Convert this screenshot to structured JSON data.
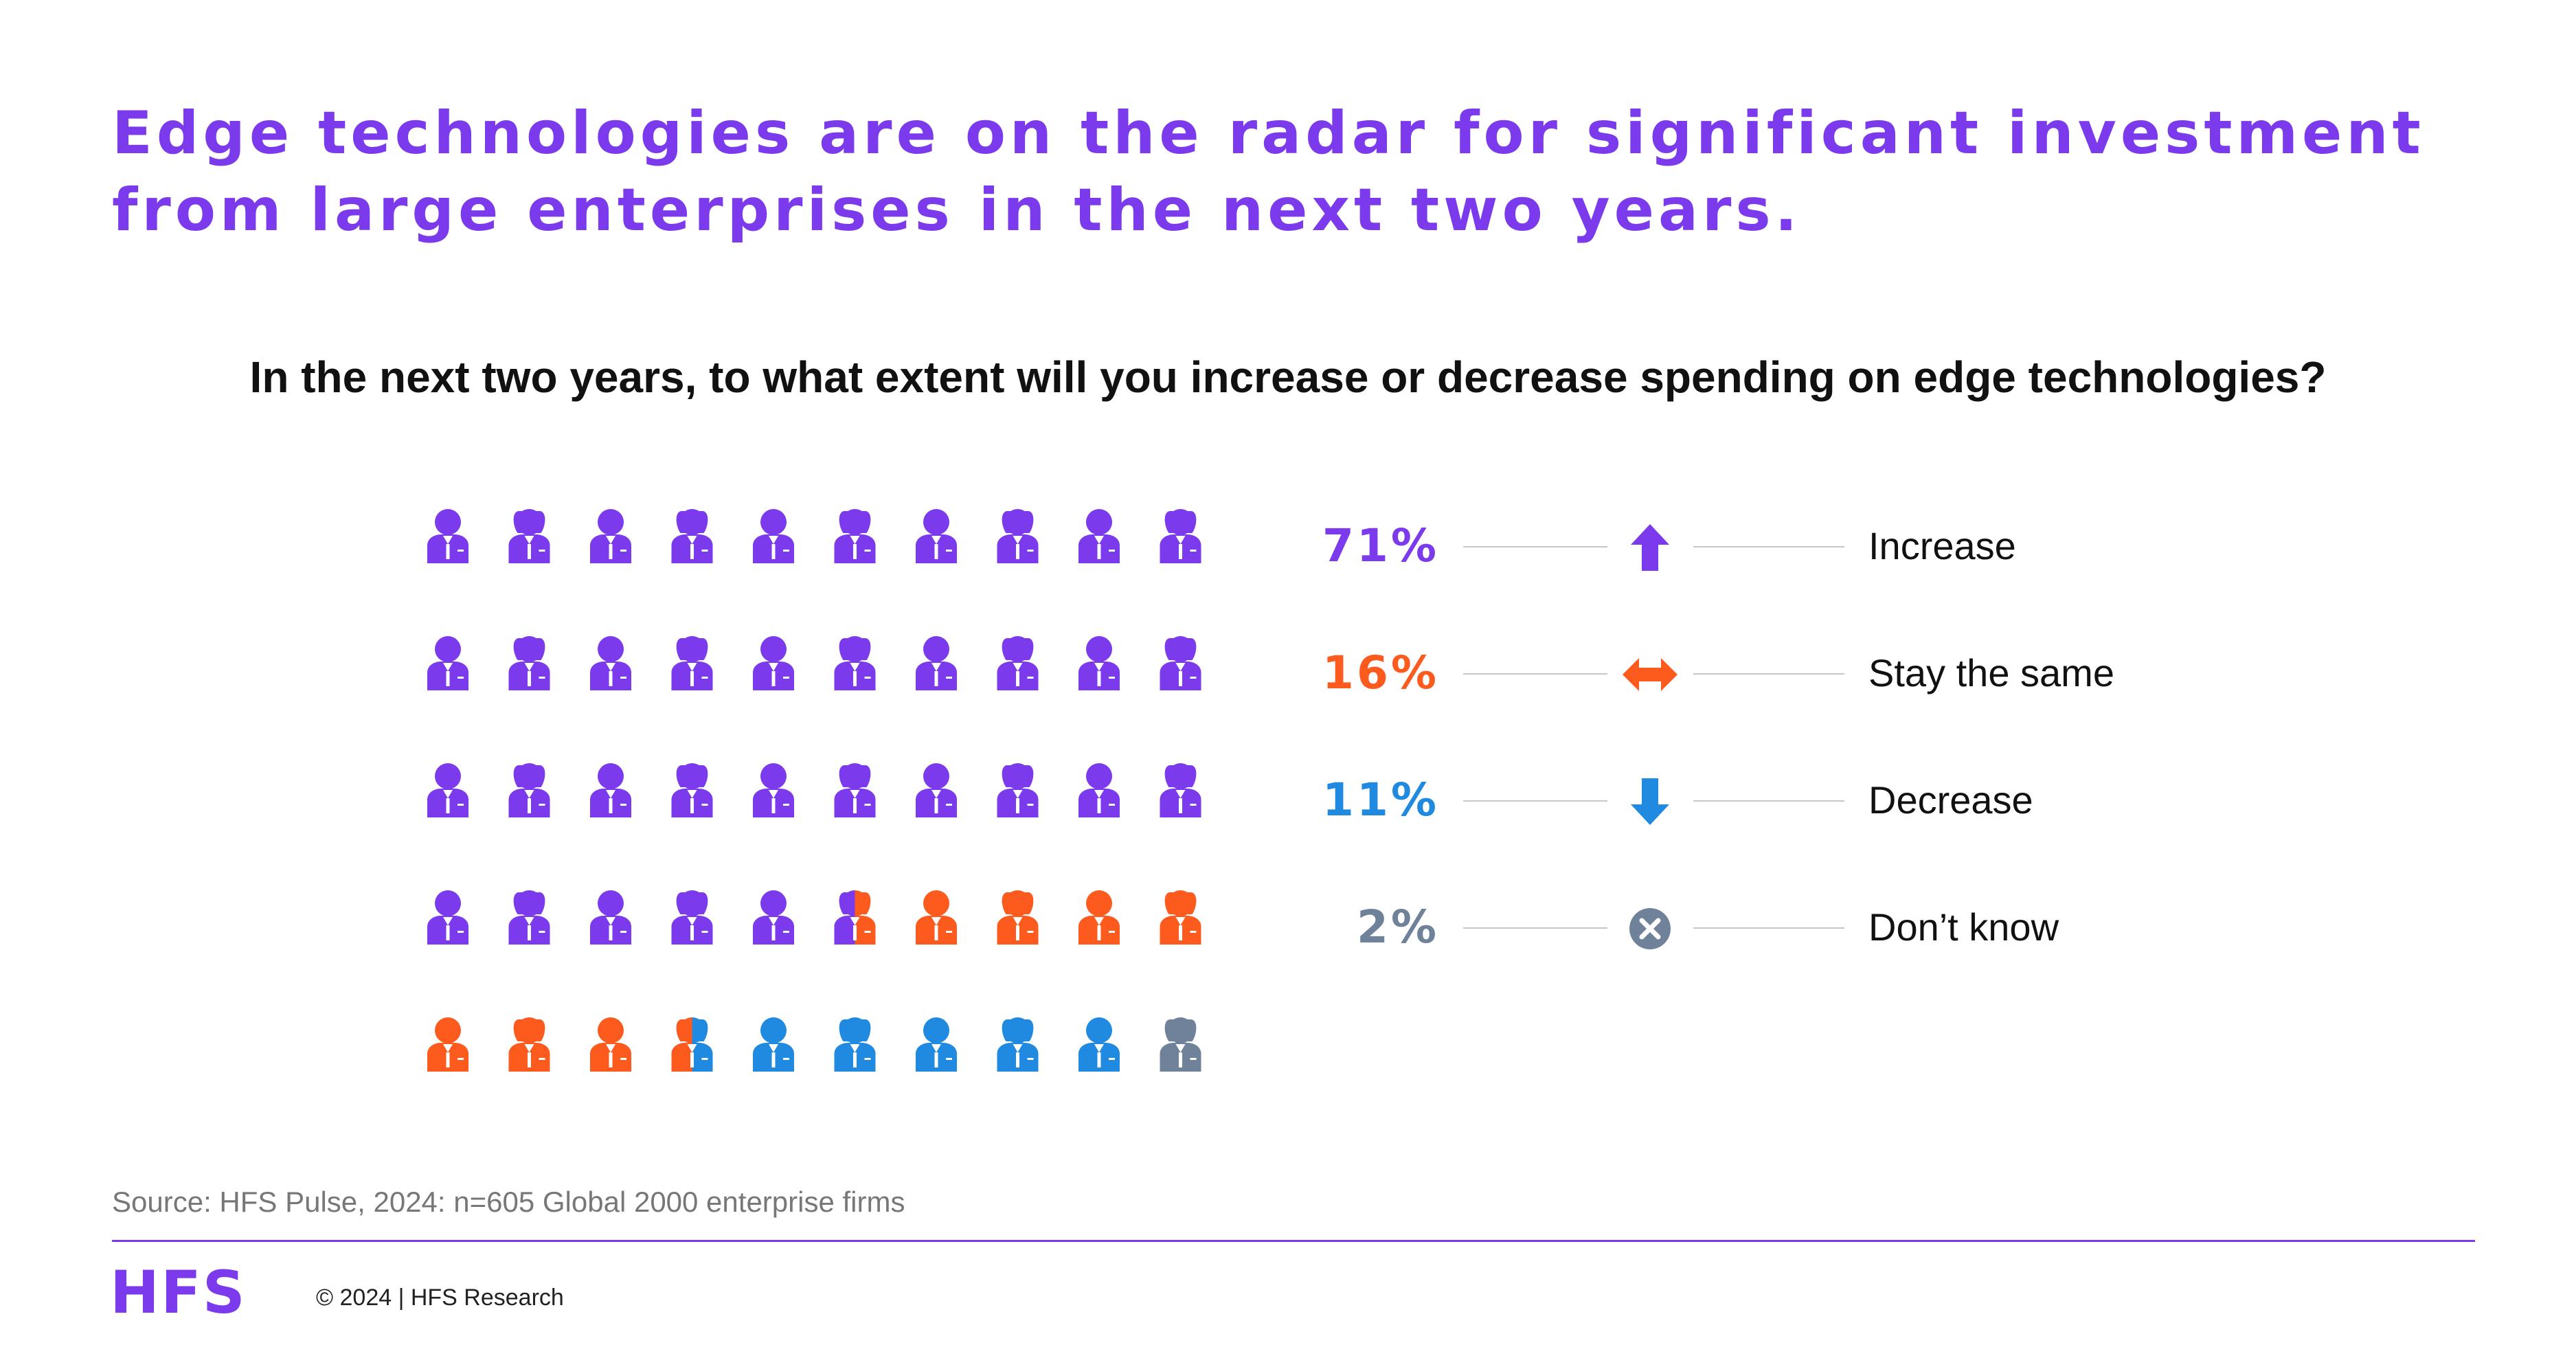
{
  "headline": "Edge technologies are on the radar for significant investment from large enterprises in the next two years.",
  "question": "In the next two years, to what extent will you increase or decrease spending on edge technologies?",
  "chart_data": {
    "type": "pictogram",
    "icon": "person-icon",
    "icon_count": 50,
    "grid": {
      "rows": 5,
      "columns": 10
    },
    "categories": [
      "Increase",
      "Stay the same",
      "Decrease",
      "Don’t know"
    ],
    "values": [
      71,
      16,
      11,
      2
    ],
    "value_labels": [
      "71%",
      "16%",
      "11%",
      "2%"
    ],
    "colors": [
      "#7c3aed",
      "#fc5b1d",
      "#1f8ae0",
      "#6f8299"
    ],
    "symbols": [
      "arrow-up-icon",
      "double-arrow-icon",
      "arrow-down-icon",
      "x-circle-icon"
    ]
  },
  "source": "Source: HFS Pulse, 2024: n=605 Global 2000 enterprise firms",
  "footer": {
    "logo": "HFS",
    "copyright": "© 2024 | HFS Research"
  }
}
